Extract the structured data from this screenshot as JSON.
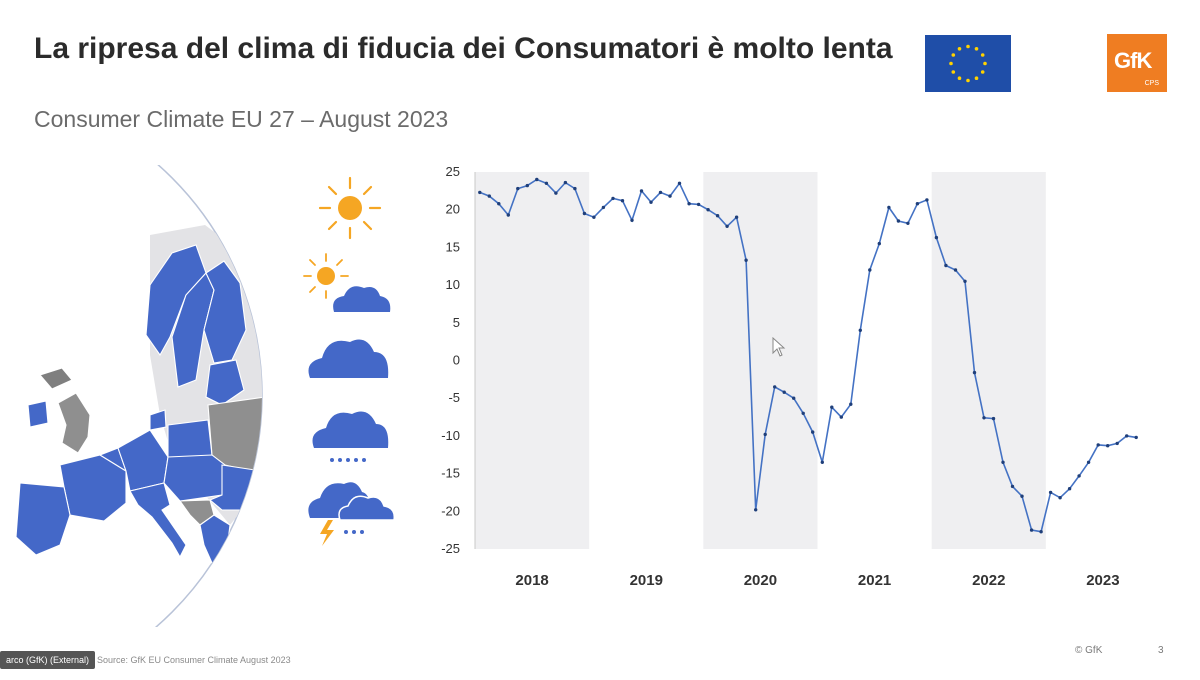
{
  "slide": {
    "title": "La ripresa del clima di fiducia dei Consumatori è molto lenta",
    "subtitle": "Consumer Climate EU 27 – August 2023",
    "logo_text": "GfK",
    "logo_subtext": "CPS",
    "footer_left": "arco (GfK) (External)",
    "footer_source": "Source: GfK EU Consumer Climate August 2023",
    "footer_copyright": "© GfK",
    "page_number": "3"
  },
  "colors": {
    "line": "#4472c4",
    "shade": "#efeff1",
    "map_eu": "#4468c8",
    "map_non_eu": "#8f8f8f",
    "map_land_light": "#e3e3e6",
    "sun": "#f5a623",
    "cloud": "#4468c8",
    "logo": "#ef7d22",
    "flag_blue": "#1f4ea8",
    "flag_star": "#ffd200"
  },
  "weather_icons": [
    "sun-icon",
    "sun-cloud-icon",
    "cloud-icon",
    "rain-cloud-icon",
    "storm-cloud-icon"
  ],
  "chart_data": {
    "type": "line",
    "title": "",
    "xlabel": "",
    "ylabel": "",
    "ylim": [
      -25,
      25
    ],
    "yticks": [
      25,
      20,
      15,
      10,
      5,
      0,
      -5,
      -10,
      -15,
      -20,
      -25
    ],
    "year_labels": [
      "2018",
      "2019",
      "2020",
      "2021",
      "2022",
      "2023"
    ],
    "shaded_years": [
      "2018",
      "2020",
      "2022"
    ],
    "x_months_start": "2018-01",
    "series": [
      {
        "name": "",
        "values": [
          22.3,
          21.8,
          20.8,
          19.3,
          22.8,
          23.2,
          24.0,
          23.5,
          22.2,
          23.6,
          22.8,
          19.5,
          19.0,
          20.3,
          21.5,
          21.2,
          18.6,
          22.5,
          21.0,
          22.3,
          21.8,
          23.5,
          20.8,
          20.7,
          20.0,
          19.2,
          17.8,
          19.0,
          13.3,
          -19.8,
          -9.8,
          -3.5,
          -4.2,
          -5.0,
          -7.0,
          -9.5,
          -13.5,
          -6.2,
          -7.5,
          -5.8,
          4.0,
          12.0,
          15.5,
          20.3,
          18.5,
          18.2,
          20.8,
          21.3,
          16.3,
          12.6,
          12.0,
          10.5,
          -1.6,
          -7.6,
          -7.7,
          -13.5,
          -16.7,
          -18.0,
          -22.5,
          -22.7,
          -17.5,
          -18.2,
          -17.0,
          -15.3,
          -13.5,
          -11.2,
          -11.3,
          -11.0,
          -10.0,
          -10.2
        ]
      }
    ]
  }
}
